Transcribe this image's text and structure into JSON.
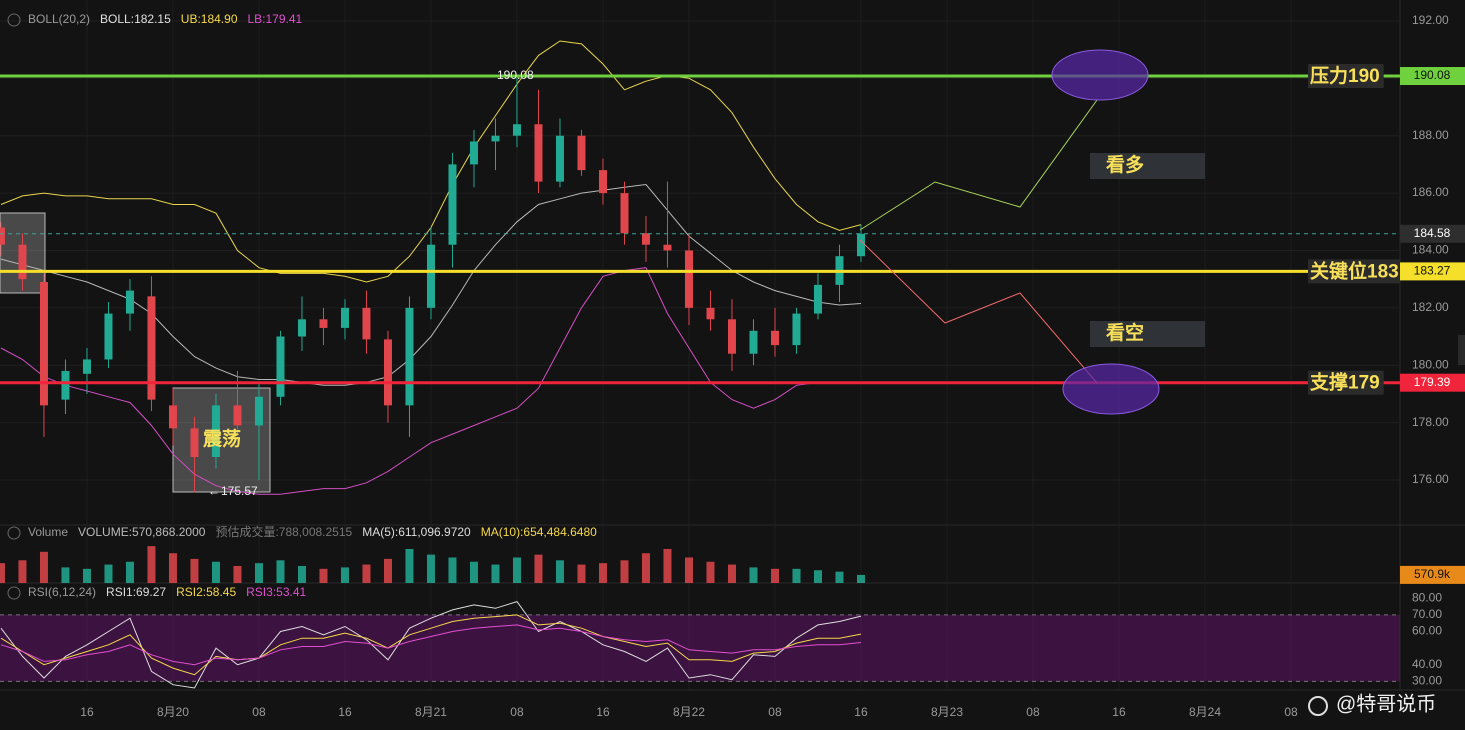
{
  "chart_data": [
    {
      "type": "candlestick",
      "title": "BOLL(20,2)",
      "indicators": [
        {
          "text": "BOLL:182.15",
          "color": "#e0e0e0"
        },
        {
          "text": "UB:184.90",
          "color": "#f5d84a"
        },
        {
          "text": "LB:179.41",
          "color": "#e04fd0"
        }
      ],
      "x": [
        8,
        10,
        12,
        14,
        16,
        18,
        20,
        22,
        24,
        26,
        28,
        30,
        32,
        34,
        36,
        38,
        40,
        42,
        44,
        46,
        48,
        50,
        52,
        54,
        56,
        58,
        60,
        62,
        64,
        66,
        68,
        70,
        72,
        74,
        76,
        78,
        80,
        82,
        84,
        86,
        88
      ],
      "open": [
        184.8,
        184.2,
        182.9,
        178.8,
        179.7,
        180.2,
        181.8,
        182.4,
        178.6,
        177.8,
        176.8,
        178.6,
        177.9,
        178.9,
        181.0,
        181.6,
        181.3,
        182.0,
        180.9,
        178.6,
        182.0,
        184.2,
        187.0,
        187.8,
        188.0,
        188.4,
        186.4,
        188.0,
        186.8,
        186.0,
        184.6,
        184.2,
        184.0,
        182.0,
        181.6,
        180.4,
        181.2,
        180.7,
        181.8,
        182.8,
        183.8
      ],
      "high": [
        185.0,
        184.6,
        183.2,
        180.2,
        180.6,
        182.2,
        183.0,
        183.1,
        179.2,
        178.2,
        179.0,
        179.8,
        179.4,
        181.2,
        182.4,
        182.0,
        182.3,
        182.6,
        181.2,
        182.4,
        184.8,
        187.4,
        188.2,
        188.6,
        190.08,
        189.6,
        188.6,
        188.2,
        187.2,
        186.4,
        185.2,
        186.4,
        184.6,
        182.6,
        182.3,
        181.6,
        182.0,
        182.0,
        183.2,
        184.2,
        184.9
      ],
      "low": [
        183.8,
        182.6,
        177.5,
        178.3,
        179.0,
        179.9,
        181.2,
        178.4,
        177.2,
        175.57,
        176.4,
        177.6,
        176.0,
        178.6,
        180.5,
        180.7,
        180.9,
        180.4,
        178.0,
        177.5,
        181.6,
        183.4,
        186.2,
        186.8,
        187.6,
        186.0,
        186.2,
        186.6,
        185.6,
        184.2,
        183.6,
        183.4,
        181.4,
        181.2,
        179.8,
        180.0,
        180.3,
        180.4,
        181.6,
        182.2,
        183.6
      ],
      "close": [
        184.2,
        183.0,
        178.6,
        179.8,
        180.2,
        181.8,
        182.6,
        178.8,
        177.8,
        176.8,
        178.6,
        177.9,
        178.9,
        181.0,
        181.6,
        181.3,
        182.0,
        180.9,
        178.6,
        182.0,
        184.2,
        187.0,
        187.8,
        188.0,
        188.4,
        186.4,
        188.0,
        186.8,
        186.0,
        184.6,
        184.2,
        184.0,
        182.0,
        181.6,
        180.4,
        181.2,
        180.7,
        181.8,
        182.8,
        183.8,
        184.58
      ],
      "up_color": "#22ab94",
      "down_color": "#e0464c",
      "overlays": [
        {
          "color": "#e8d44d",
          "values": [
            185.6,
            185.9,
            186.0,
            185.9,
            185.9,
            185.8,
            185.8,
            185.8,
            185.6,
            185.6,
            185.3,
            184.0,
            183.4,
            183.2,
            183.2,
            183.2,
            183.1,
            182.9,
            183.1,
            183.8,
            184.8,
            186.3,
            187.6,
            188.7,
            189.8,
            190.8,
            191.3,
            191.2,
            190.5,
            189.6,
            189.9,
            190.1,
            190.0,
            189.6,
            188.8,
            187.6,
            186.5,
            185.6,
            185.0,
            184.7,
            184.9
          ]
        },
        {
          "color": "#b8b8b8",
          "values": [
            183.7,
            183.5,
            183.3,
            183.1,
            182.9,
            182.6,
            182.3,
            181.8,
            181.0,
            180.3,
            179.9,
            179.6,
            179.5,
            179.5,
            179.4,
            179.3,
            179.3,
            179.4,
            179.6,
            180.2,
            181.0,
            182.1,
            183.3,
            184.2,
            185.0,
            185.6,
            185.8,
            186.0,
            186.1,
            186.2,
            186.3,
            185.4,
            184.5,
            183.9,
            183.3,
            182.9,
            182.6,
            182.4,
            182.2,
            182.1,
            182.15
          ]
        },
        {
          "color": "#d44fc4",
          "values": [
            180.6,
            180.2,
            179.6,
            179.3,
            179.1,
            178.9,
            178.7,
            177.9,
            176.9,
            176.2,
            175.8,
            175.6,
            175.5,
            175.5,
            175.6,
            175.7,
            175.7,
            175.9,
            176.3,
            176.8,
            177.3,
            177.6,
            177.9,
            178.2,
            178.5,
            179.2,
            180.6,
            182.0,
            183.1,
            183.3,
            183.4,
            181.8,
            180.6,
            179.4,
            178.8,
            178.5,
            178.8,
            179.3,
            179.4,
            179.4,
            179.41
          ]
        }
      ],
      "xlim": [
        7.91,
        138.14
      ],
      "xticks": [
        {
          "value": 16,
          "label": "16"
        },
        {
          "value": 24,
          "label": "8月20"
        },
        {
          "value": 32,
          "label": "08"
        },
        {
          "value": 40,
          "label": "16"
        },
        {
          "value": 48,
          "label": "8月21"
        },
        {
          "value": 56,
          "label": "08"
        },
        {
          "value": 64,
          "label": "16"
        },
        {
          "value": 72,
          "label": "8月22"
        },
        {
          "value": 80,
          "label": "08"
        },
        {
          "value": 88,
          "label": "16"
        },
        {
          "value": 96,
          "label": "8月23"
        },
        {
          "value": 104,
          "label": "08"
        },
        {
          "value": 112,
          "label": "16"
        },
        {
          "value": 120,
          "label": "8月24"
        },
        {
          "value": 128,
          "label": "08"
        }
      ],
      "ylim": [
        174.43,
        192.73
      ],
      "yticks": [
        {
          "value": 192,
          "label": "192.00"
        },
        {
          "value": 190,
          "label": "190.00"
        },
        {
          "value": 188,
          "label": "188.00"
        },
        {
          "value": 186,
          "label": "186.00"
        },
        {
          "value": 184,
          "label": "184.00"
        },
        {
          "value": 182,
          "label": "182.00"
        },
        {
          "value": 180,
          "label": "180.00"
        },
        {
          "value": 178,
          "label": "178.00"
        },
        {
          "value": 176,
          "label": "176.00"
        }
      ],
      "levels": [
        {
          "value": 190.08,
          "color": "#6fd13d",
          "tag_text": "#111111",
          "note": "压力190"
        },
        {
          "value": 183.27,
          "color": "#f5df2a",
          "tag_text": "#111111",
          "note": "关键位183"
        },
        {
          "value": 179.39,
          "color": "#f0243a",
          "tag_text": "#ffffff",
          "note": "支撑179"
        },
        {
          "value": 184.58,
          "color": "#3aa59a",
          "tag_color": "#2e2e2e",
          "tag_text": "#ffffff",
          "dashed": true
        }
      ],
      "annotations": [
        "看多",
        "看空",
        "震荡"
      ],
      "grid": true
    },
    {
      "type": "bar",
      "title": "Volume",
      "indicators": [
        {
          "text": "VOLUME:570,868.2000",
          "color": "#bbbbbb"
        },
        {
          "text": "预估成交量:788,008.2515",
          "color": "#777777"
        },
        {
          "text": "MA(5):611,096.9720",
          "color": "#dddddd"
        },
        {
          "text": "MA(10):654,484.6480",
          "color": "#f5d84a"
        }
      ],
      "x": [
        8,
        10,
        12,
        14,
        16,
        18,
        20,
        22,
        24,
        26,
        28,
        30,
        32,
        34,
        36,
        38,
        40,
        42,
        44,
        46,
        48,
        50,
        52,
        54,
        56,
        58,
        60,
        62,
        64,
        66,
        68,
        70,
        72,
        74,
        76,
        78,
        80,
        82,
        84,
        86,
        88
      ],
      "values": [
        1400000,
        1600000,
        2200000,
        1100000,
        1000000,
        1300000,
        1500000,
        2600000,
        2100000,
        1700000,
        1500000,
        1200000,
        1400000,
        1600000,
        1200000,
        1000000,
        1100000,
        1300000,
        1700000,
        2400000,
        2000000,
        1800000,
        1500000,
        1300000,
        1800000,
        2000000,
        1600000,
        1300000,
        1400000,
        1600000,
        2100000,
        2400000,
        1800000,
        1500000,
        1300000,
        1100000,
        1000000,
        1000000,
        900000,
        800000,
        570868.2
      ],
      "ylim": [
        0,
        4090000
      ],
      "yticks": [
        {
          "value": 570868.2,
          "label": "570.9k"
        }
      ],
      "tag_color": "#e88a1a"
    },
    {
      "type": "line",
      "title": "RSI(6,12,24)",
      "indicators": [
        {
          "text": "RSI1:69.27",
          "color": "#dddddd"
        },
        {
          "text": "RSI2:58.45",
          "color": "#f5d84a"
        },
        {
          "text": "RSI3:53.41",
          "color": "#e04fd0"
        }
      ],
      "x": [
        8,
        10,
        12,
        14,
        16,
        18,
        20,
        22,
        24,
        26,
        28,
        30,
        32,
        34,
        36,
        38,
        40,
        42,
        44,
        46,
        48,
        50,
        52,
        54,
        56,
        58,
        60,
        62,
        64,
        66,
        68,
        70,
        72,
        74,
        76,
        78,
        80,
        82,
        84,
        86,
        88
      ],
      "series": [
        {
          "color": "#dddddd",
          "values": [
            62,
            45,
            32,
            45,
            52,
            60,
            68,
            36,
            28,
            26,
            50,
            40,
            44,
            60,
            63,
            58,
            63,
            55,
            43,
            62,
            68,
            73,
            76,
            74,
            78,
            60,
            66,
            60,
            52,
            48,
            42,
            50,
            32,
            34,
            31,
            46,
            45,
            56,
            64,
            66,
            69.27
          ]
        },
        {
          "color": "#f5d84a",
          "values": [
            56,
            48,
            40,
            44,
            48,
            52,
            58,
            44,
            38,
            34,
            45,
            43,
            44,
            52,
            56,
            56,
            59,
            56,
            50,
            58,
            62,
            66,
            68,
            69,
            70,
            64,
            65,
            62,
            57,
            54,
            51,
            53,
            43,
            43,
            42,
            47,
            48,
            53,
            56,
            56,
            58.45
          ]
        },
        {
          "color": "#e04fd0",
          "values": [
            52,
            48,
            42,
            43,
            46,
            48,
            52,
            46,
            42,
            40,
            44,
            43,
            44,
            49,
            51,
            51,
            54,
            53,
            50,
            54,
            57,
            60,
            62,
            63,
            64,
            61,
            62,
            60,
            57,
            55,
            54,
            55,
            49,
            48,
            47,
            49,
            49,
            51,
            52,
            52,
            53.41
          ]
        }
      ],
      "band": [
        30,
        70
      ],
      "ylim": [
        24.8,
        89.2
      ],
      "yticks": [
        {
          "value": 80,
          "label": "80.00"
        },
        {
          "value": 70,
          "label": "70.00"
        },
        {
          "value": 60,
          "label": "60.00"
        },
        {
          "value": 40,
          "label": "40.00"
        },
        {
          "value": 30,
          "label": "30.00"
        }
      ]
    }
  ],
  "watermark": "@特哥说币"
}
